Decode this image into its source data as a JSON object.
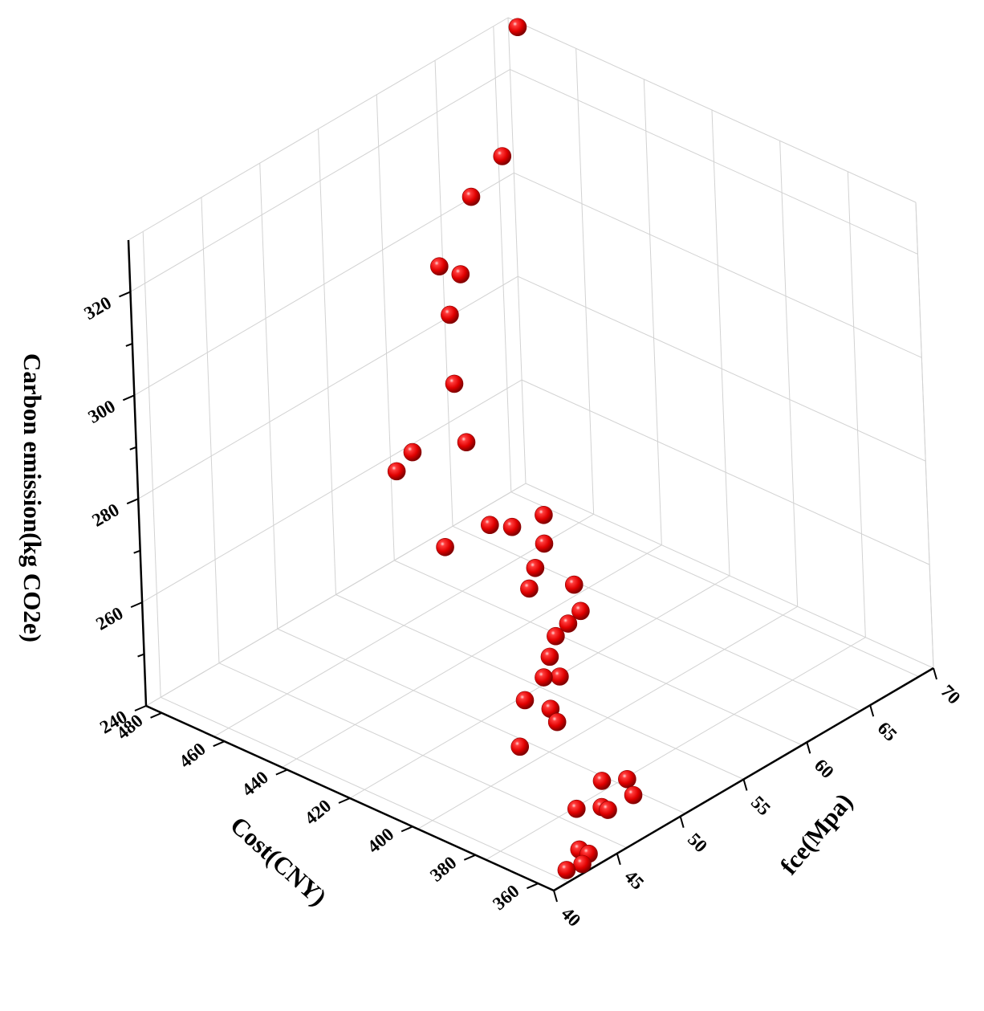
{
  "chart_data": {
    "type": "scatter",
    "dimensions": 3,
    "xlabel": "Cost(CNY)",
    "ylabel": "fce(Mpa)",
    "zlabel": "Carbon emission(kg CO2e)",
    "xticks": [
      360,
      380,
      400,
      420,
      440,
      460,
      480
    ],
    "yticks": [
      40,
      45,
      50,
      55,
      60,
      65,
      70
    ],
    "zticks": [
      240,
      260,
      280,
      300,
      320
    ],
    "xlim": [
      355,
      485
    ],
    "ylim": [
      40,
      70
    ],
    "zlim": [
      240,
      330
    ],
    "grid": true,
    "marker_color": "#e00000",
    "points": [
      {
        "x": 482,
        "y": 70,
        "z": 329
      },
      {
        "x": 476,
        "y": 67,
        "z": 310
      },
      {
        "x": 474,
        "y": 64,
        "z": 307
      },
      {
        "x": 460,
        "y": 58,
        "z": 306
      },
      {
        "x": 453,
        "y": 57,
        "z": 300
      },
      {
        "x": 470,
        "y": 62,
        "z": 296
      },
      {
        "x": 444,
        "y": 55,
        "z": 292
      },
      {
        "x": 450,
        "y": 53,
        "z": 280
      },
      {
        "x": 447,
        "y": 51,
        "z": 280
      },
      {
        "x": 445,
        "y": 56,
        "z": 279
      },
      {
        "x": 428,
        "y": 50,
        "z": 272
      },
      {
        "x": 430,
        "y": 54,
        "z": 270
      },
      {
        "x": 427,
        "y": 55,
        "z": 269
      },
      {
        "x": 425,
        "y": 57,
        "z": 269
      },
      {
        "x": 421,
        "y": 56,
        "z": 266
      },
      {
        "x": 420,
        "y": 55,
        "z": 263
      },
      {
        "x": 418,
        "y": 54,
        "z": 261
      },
      {
        "x": 416,
        "y": 57,
        "z": 258
      },
      {
        "x": 410,
        "y": 56,
        "z": 256
      },
      {
        "x": 410,
        "y": 55,
        "z": 255
      },
      {
        "x": 410,
        "y": 54,
        "z": 254
      },
      {
        "x": 408,
        "y": 53,
        "z": 252
      },
      {
        "x": 406,
        "y": 52,
        "z": 250
      },
      {
        "x": 405,
        "y": 53,
        "z": 249
      },
      {
        "x": 404,
        "y": 50,
        "z": 249
      },
      {
        "x": 400,
        "y": 51,
        "z": 247
      },
      {
        "x": 398,
        "y": 51,
        "z": 245
      },
      {
        "x": 402,
        "y": 49,
        "z": 242
      },
      {
        "x": 380,
        "y": 50,
        "z": 240
      },
      {
        "x": 376,
        "y": 51,
        "z": 240
      },
      {
        "x": 376,
        "y": 47,
        "z": 240
      },
      {
        "x": 372,
        "y": 48,
        "z": 240
      },
      {
        "x": 370,
        "y": 48,
        "z": 240
      },
      {
        "x": 370,
        "y": 50,
        "z": 240
      },
      {
        "x": 363,
        "y": 44,
        "z": 240
      },
      {
        "x": 360,
        "y": 44,
        "z": 240
      },
      {
        "x": 359,
        "y": 42,
        "z": 240
      },
      {
        "x": 358,
        "y": 43,
        "z": 240
      }
    ]
  }
}
